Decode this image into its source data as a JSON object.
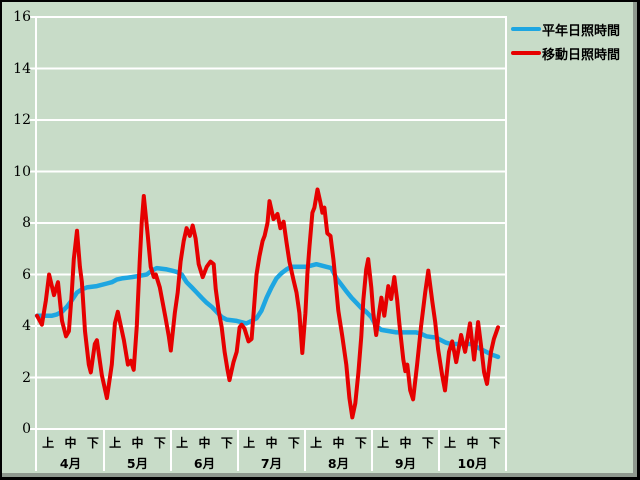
{
  "window": {
    "background_color": "#c8dcc8",
    "frame_shadow_color": "#8e988e",
    "gridline_color": "#ffffff"
  },
  "legend": {
    "position": "top-right",
    "items": [
      {
        "label": "平年日照時間",
        "color": "#1ea6e1"
      },
      {
        "label": "移動日照時間",
        "color": "#e60000"
      }
    ]
  },
  "chart_data": {
    "type": "line",
    "title": "",
    "xlabel": "",
    "ylabel": "",
    "ylim": [
      0,
      16
    ],
    "y_ticks": [
      0,
      2,
      4,
      6,
      8,
      10,
      12,
      14,
      16
    ],
    "grid": "horizontal white lines every 2 units",
    "legend_position": "top-right",
    "x_axis": {
      "months": [
        "4月",
        "5月",
        "6月",
        "7月",
        "8月",
        "9月",
        "10月"
      ],
      "period_labels": [
        "上",
        "中",
        "下"
      ],
      "x_unit": "month-thirds: 0 = start of 4月, 3 per month, 21 = end of 10月"
    },
    "series": [
      {
        "name": "平年日照時間",
        "color": "#1ea6e1",
        "stroke_width": 4.5,
        "points": [
          [
            0,
            4.4
          ],
          [
            0.67,
            4.4
          ],
          [
            0.89,
            4.45
          ],
          [
            1.12,
            4.55
          ],
          [
            1.34,
            4.75
          ],
          [
            1.56,
            5.0
          ],
          [
            1.79,
            5.3
          ],
          [
            2.01,
            5.42
          ],
          [
            2.23,
            5.5
          ],
          [
            2.68,
            5.55
          ],
          [
            3.13,
            5.65
          ],
          [
            3.35,
            5.7
          ],
          [
            3.57,
            5.8
          ],
          [
            3.8,
            5.85
          ],
          [
            4.24,
            5.9
          ],
          [
            4.6,
            5.95
          ],
          [
            4.91,
            6.0
          ],
          [
            5.14,
            6.15
          ],
          [
            5.36,
            6.25
          ],
          [
            5.81,
            6.2
          ],
          [
            6.03,
            6.15
          ],
          [
            6.26,
            6.1
          ],
          [
            6.48,
            6.0
          ],
          [
            6.7,
            5.7
          ],
          [
            6.93,
            5.5
          ],
          [
            7.15,
            5.3
          ],
          [
            7.37,
            5.1
          ],
          [
            7.6,
            4.9
          ],
          [
            7.82,
            4.75
          ],
          [
            8.04,
            4.55
          ],
          [
            8.27,
            4.35
          ],
          [
            8.49,
            4.25
          ],
          [
            8.94,
            4.2
          ],
          [
            9.38,
            4.1
          ],
          [
            9.61,
            4.2
          ],
          [
            9.83,
            4.3
          ],
          [
            10.05,
            4.6
          ],
          [
            10.28,
            5.1
          ],
          [
            10.5,
            5.5
          ],
          [
            10.72,
            5.85
          ],
          [
            10.95,
            6.05
          ],
          [
            11.17,
            6.2
          ],
          [
            11.39,
            6.3
          ],
          [
            12.06,
            6.3
          ],
          [
            12.51,
            6.4
          ],
          [
            12.96,
            6.3
          ],
          [
            13.18,
            6.25
          ],
          [
            13.41,
            5.85
          ],
          [
            13.63,
            5.6
          ],
          [
            13.85,
            5.35
          ],
          [
            14.08,
            5.1
          ],
          [
            14.3,
            4.9
          ],
          [
            14.52,
            4.7
          ],
          [
            14.74,
            4.55
          ],
          [
            14.97,
            4.35
          ],
          [
            15.19,
            4.0
          ],
          [
            15.42,
            3.85
          ],
          [
            16.09,
            3.75
          ],
          [
            16.98,
            3.75
          ],
          [
            17.2,
            3.7
          ],
          [
            17.43,
            3.6
          ],
          [
            17.87,
            3.55
          ],
          [
            18.1,
            3.45
          ],
          [
            18.32,
            3.35
          ],
          [
            18.54,
            3.3
          ],
          [
            19.21,
            3.3
          ],
          [
            19.44,
            3.3
          ],
          [
            19.66,
            3.2
          ],
          [
            19.88,
            3.1
          ],
          [
            20.11,
            3.0
          ],
          [
            20.33,
            2.9
          ],
          [
            20.64,
            2.8
          ]
        ]
      },
      {
        "name": "移動日照時間",
        "color": "#e60000",
        "stroke_width": 4,
        "points": [
          [
            0,
            4.4
          ],
          [
            0.22,
            4.05
          ],
          [
            0.4,
            5.0
          ],
          [
            0.54,
            6.0
          ],
          [
            0.76,
            5.2
          ],
          [
            0.94,
            5.7
          ],
          [
            1.12,
            4.2
          ],
          [
            1.3,
            3.6
          ],
          [
            1.43,
            3.8
          ],
          [
            1.56,
            5.3
          ],
          [
            1.65,
            6.6
          ],
          [
            1.79,
            7.7
          ],
          [
            1.92,
            6.3
          ],
          [
            2.01,
            5.7
          ],
          [
            2.15,
            3.8
          ],
          [
            2.32,
            2.5
          ],
          [
            2.41,
            2.2
          ],
          [
            2.59,
            3.3
          ],
          [
            2.68,
            3.45
          ],
          [
            2.9,
            2.1
          ],
          [
            3.13,
            1.2
          ],
          [
            3.35,
            2.5
          ],
          [
            3.49,
            4.1
          ],
          [
            3.62,
            4.55
          ],
          [
            3.89,
            3.45
          ],
          [
            4.07,
            2.5
          ],
          [
            4.2,
            2.65
          ],
          [
            4.33,
            2.3
          ],
          [
            4.47,
            4.0
          ],
          [
            4.6,
            6.5
          ],
          [
            4.69,
            8.0
          ],
          [
            4.78,
            9.05
          ],
          [
            4.96,
            7.5
          ],
          [
            5.09,
            6.3
          ],
          [
            5.23,
            5.9
          ],
          [
            5.32,
            6.0
          ],
          [
            5.5,
            5.5
          ],
          [
            5.63,
            4.9
          ],
          [
            5.76,
            4.3
          ],
          [
            5.9,
            3.6
          ],
          [
            5.99,
            3.05
          ],
          [
            6.17,
            4.5
          ],
          [
            6.3,
            5.3
          ],
          [
            6.43,
            6.5
          ],
          [
            6.57,
            7.3
          ],
          [
            6.7,
            7.8
          ],
          [
            6.84,
            7.5
          ],
          [
            6.97,
            7.9
          ],
          [
            7.1,
            7.4
          ],
          [
            7.24,
            6.4
          ],
          [
            7.42,
            5.9
          ],
          [
            7.6,
            6.3
          ],
          [
            7.77,
            6.5
          ],
          [
            7.91,
            6.4
          ],
          [
            8.0,
            5.45
          ],
          [
            8.13,
            4.6
          ],
          [
            8.27,
            3.95
          ],
          [
            8.4,
            3.0
          ],
          [
            8.53,
            2.3
          ],
          [
            8.62,
            1.9
          ],
          [
            8.8,
            2.6
          ],
          [
            8.94,
            3.0
          ],
          [
            9.07,
            3.95
          ],
          [
            9.16,
            4.05
          ],
          [
            9.29,
            3.9
          ],
          [
            9.47,
            3.4
          ],
          [
            9.61,
            3.5
          ],
          [
            9.7,
            4.5
          ],
          [
            9.83,
            6.0
          ],
          [
            9.96,
            6.7
          ],
          [
            10.1,
            7.3
          ],
          [
            10.19,
            7.5
          ],
          [
            10.32,
            8.0
          ],
          [
            10.41,
            8.85
          ],
          [
            10.59,
            8.15
          ],
          [
            10.77,
            8.35
          ],
          [
            10.9,
            7.8
          ],
          [
            11.04,
            8.05
          ],
          [
            11.17,
            7.25
          ],
          [
            11.3,
            6.5
          ],
          [
            11.48,
            5.8
          ],
          [
            11.62,
            5.3
          ],
          [
            11.75,
            4.5
          ],
          [
            11.88,
            2.95
          ],
          [
            12.02,
            4.5
          ],
          [
            12.11,
            6.1
          ],
          [
            12.2,
            7.1
          ],
          [
            12.33,
            8.4
          ],
          [
            12.42,
            8.6
          ],
          [
            12.56,
            9.3
          ],
          [
            12.69,
            8.8
          ],
          [
            12.78,
            8.4
          ],
          [
            12.87,
            8.6
          ],
          [
            13.0,
            7.6
          ],
          [
            13.14,
            7.5
          ],
          [
            13.27,
            6.6
          ],
          [
            13.36,
            5.8
          ],
          [
            13.49,
            4.6
          ],
          [
            13.67,
            3.6
          ],
          [
            13.85,
            2.5
          ],
          [
            13.99,
            1.2
          ],
          [
            14.12,
            0.45
          ],
          [
            14.25,
            1.0
          ],
          [
            14.39,
            2.2
          ],
          [
            14.52,
            3.6
          ],
          [
            14.61,
            5.0
          ],
          [
            14.74,
            6.2
          ],
          [
            14.83,
            6.6
          ],
          [
            14.97,
            5.5
          ],
          [
            15.06,
            4.5
          ],
          [
            15.19,
            3.65
          ],
          [
            15.33,
            4.6
          ],
          [
            15.42,
            5.1
          ],
          [
            15.55,
            4.4
          ],
          [
            15.73,
            5.55
          ],
          [
            15.86,
            5.05
          ],
          [
            16.0,
            5.9
          ],
          [
            16.13,
            5.0
          ],
          [
            16.22,
            4.15
          ],
          [
            16.4,
            2.7
          ],
          [
            16.49,
            2.25
          ],
          [
            16.58,
            2.5
          ],
          [
            16.71,
            1.5
          ],
          [
            16.84,
            1.15
          ],
          [
            17.02,
            2.5
          ],
          [
            17.2,
            4.0
          ],
          [
            17.38,
            5.3
          ],
          [
            17.52,
            6.15
          ],
          [
            17.7,
            4.95
          ],
          [
            17.83,
            4.15
          ],
          [
            17.96,
            3.1
          ],
          [
            18.14,
            2.1
          ],
          [
            18.27,
            1.5
          ],
          [
            18.45,
            3.0
          ],
          [
            18.59,
            3.4
          ],
          [
            18.77,
            2.6
          ],
          [
            18.99,
            3.65
          ],
          [
            19.17,
            3.0
          ],
          [
            19.39,
            4.1
          ],
          [
            19.57,
            2.7
          ],
          [
            19.75,
            4.15
          ],
          [
            19.88,
            3.25
          ],
          [
            20.02,
            2.2
          ],
          [
            20.15,
            1.75
          ],
          [
            20.33,
            3.0
          ],
          [
            20.46,
            3.5
          ],
          [
            20.64,
            3.95
          ]
        ]
      }
    ]
  }
}
